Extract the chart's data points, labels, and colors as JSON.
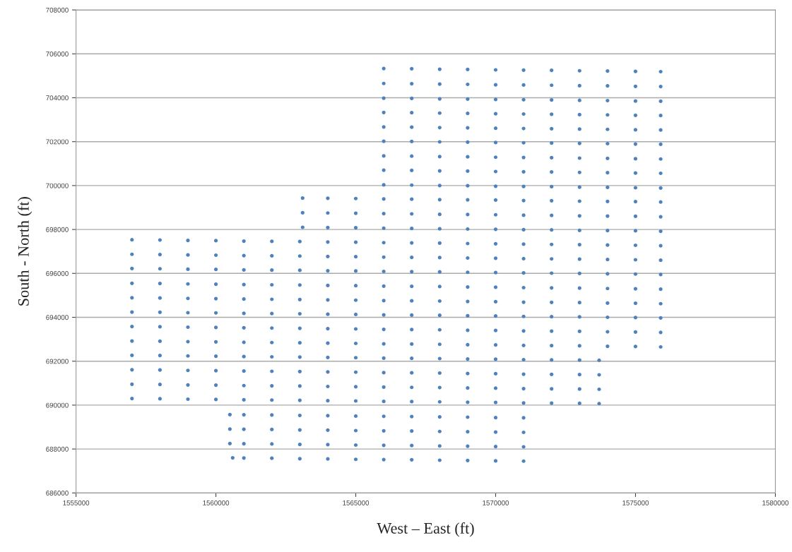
{
  "chart_data": {
    "type": "scatter",
    "xlabel": "West – East (ft)",
    "ylabel": "South - North (ft)",
    "xlim": [
      1555000,
      1580000
    ],
    "xticks": [
      1555000,
      1560000,
      1565000,
      1570000,
      1575000,
      1580000
    ],
    "ylim": [
      686000,
      708000
    ],
    "yticks": [
      686000,
      688000,
      690000,
      692000,
      694000,
      696000,
      698000,
      700000,
      702000,
      704000,
      706000,
      708000
    ],
    "grid": "y",
    "marker": "circle",
    "series": [
      {
        "color": "#4f81bd",
        "x": [
          1566000,
          1567000,
          1568000,
          1569000,
          1570000,
          1571000,
          1572000,
          1573000,
          1574000,
          1575000,
          1575900
        ],
        "values": [
          705330,
          705320,
          705300,
          705290,
          705270,
          705260,
          705250,
          705230,
          705220,
          705200,
          705190
        ]
      },
      {
        "color": "#4f81bd",
        "x": [
          1566000,
          1567000,
          1568000,
          1569000,
          1570000,
          1571000,
          1572000,
          1573000,
          1574000,
          1575000,
          1575900
        ],
        "values": [
          704650,
          704640,
          704620,
          704610,
          704590,
          704580,
          704570,
          704550,
          704540,
          704520,
          704510
        ]
      },
      {
        "color": "#4f81bd",
        "x": [
          1566000,
          1567000,
          1568000,
          1569000,
          1570000,
          1571000,
          1572000,
          1573000,
          1574000,
          1575000,
          1575900
        ],
        "values": [
          703980,
          703970,
          703950,
          703940,
          703920,
          703910,
          703900,
          703880,
          703870,
          703850,
          703840
        ]
      },
      {
        "color": "#4f81bd",
        "x": [
          1566000,
          1567000,
          1568000,
          1569000,
          1570000,
          1571000,
          1572000,
          1573000,
          1574000,
          1575000,
          1575900
        ],
        "values": [
          703330,
          703320,
          703300,
          703290,
          703270,
          703260,
          703250,
          703230,
          703220,
          703200,
          703190
        ]
      },
      {
        "color": "#4f81bd",
        "x": [
          1566000,
          1567000,
          1568000,
          1569000,
          1570000,
          1571000,
          1572000,
          1573000,
          1574000,
          1575000,
          1575900
        ],
        "values": [
          702670,
          702660,
          702640,
          702630,
          702610,
          702600,
          702590,
          702570,
          702560,
          702540,
          702530
        ]
      },
      {
        "color": "#4f81bd",
        "x": [
          1566000,
          1567000,
          1568000,
          1569000,
          1570000,
          1571000,
          1572000,
          1573000,
          1574000,
          1575000,
          1575900
        ],
        "values": [
          702020,
          702010,
          701990,
          701980,
          701960,
          701950,
          701940,
          701920,
          701910,
          701890,
          701880
        ]
      },
      {
        "color": "#4f81bd",
        "x": [
          1566000,
          1567000,
          1568000,
          1569000,
          1570000,
          1571000,
          1572000,
          1573000,
          1574000,
          1575000,
          1575900
        ],
        "values": [
          701350,
          701340,
          701320,
          701310,
          701290,
          701280,
          701270,
          701250,
          701240,
          701220,
          701210
        ]
      },
      {
        "color": "#4f81bd",
        "x": [
          1566000,
          1567000,
          1568000,
          1569000,
          1570000,
          1571000,
          1572000,
          1573000,
          1574000,
          1575000,
          1575900
        ],
        "values": [
          700700,
          700690,
          700670,
          700660,
          700640,
          700630,
          700620,
          700600,
          700590,
          700570,
          700560
        ]
      },
      {
        "color": "#4f81bd",
        "x": [
          1566000,
          1567000,
          1568000,
          1569000,
          1570000,
          1571000,
          1572000,
          1573000,
          1574000,
          1575000,
          1575900
        ],
        "values": [
          700030,
          700020,
          700000,
          699990,
          699970,
          699960,
          699950,
          699930,
          699920,
          699900,
          699890
        ]
      },
      {
        "color": "#4f81bd",
        "x": [
          1563100,
          1564000,
          1565000,
          1566000,
          1567000,
          1568000,
          1569000,
          1570000,
          1571000,
          1572000,
          1573000,
          1574000,
          1575000,
          1575900
        ],
        "values": [
          699430,
          699420,
          699410,
          699390,
          699380,
          699360,
          699350,
          699340,
          699320,
          699310,
          699290,
          699280,
          699270,
          699250
        ]
      },
      {
        "color": "#4f81bd",
        "x": [
          1563100,
          1564000,
          1565000,
          1566000,
          1567000,
          1568000,
          1569000,
          1570000,
          1571000,
          1572000,
          1573000,
          1574000,
          1575000,
          1575900
        ],
        "values": [
          698760,
          698750,
          698740,
          698720,
          698710,
          698690,
          698680,
          698670,
          698650,
          698640,
          698620,
          698610,
          698600,
          698580
        ]
      },
      {
        "color": "#4f81bd",
        "x": [
          1563100,
          1564000,
          1565000,
          1566000,
          1567000,
          1568000,
          1569000,
          1570000,
          1571000,
          1572000,
          1573000,
          1574000,
          1575000,
          1575900
        ],
        "values": [
          698100,
          698090,
          698080,
          698060,
          698050,
          698030,
          698020,
          698010,
          697990,
          697980,
          697960,
          697950,
          697940,
          697920
        ]
      },
      {
        "color": "#4f81bd",
        "x": [
          1557000,
          1558000,
          1559000,
          1560000,
          1561000,
          1562000,
          1563000,
          1564000,
          1565000,
          1566000,
          1567000,
          1568000,
          1569000,
          1570000,
          1571000,
          1572000,
          1573000,
          1574000,
          1575000,
          1575900
        ],
        "values": [
          697530,
          697520,
          697500,
          697490,
          697470,
          697460,
          697450,
          697430,
          697420,
          697400,
          697390,
          697380,
          697360,
          697350,
          697330,
          697320,
          697310,
          697290,
          697280,
          697260
        ]
      },
      {
        "color": "#4f81bd",
        "x": [
          1557000,
          1558000,
          1559000,
          1560000,
          1561000,
          1562000,
          1563000,
          1564000,
          1565000,
          1566000,
          1567000,
          1568000,
          1569000,
          1570000,
          1571000,
          1572000,
          1573000,
          1574000,
          1575000,
          1575900
        ],
        "values": [
          696870,
          696860,
          696840,
          696830,
          696810,
          696800,
          696790,
          696770,
          696760,
          696740,
          696730,
          696720,
          696700,
          696690,
          696670,
          696660,
          696650,
          696630,
          696620,
          696600
        ]
      },
      {
        "color": "#4f81bd",
        "x": [
          1557000,
          1558000,
          1559000,
          1560000,
          1561000,
          1562000,
          1563000,
          1564000,
          1565000,
          1566000,
          1567000,
          1568000,
          1569000,
          1570000,
          1571000,
          1572000,
          1573000,
          1574000,
          1575000,
          1575900
        ],
        "values": [
          696220,
          696210,
          696190,
          696180,
          696160,
          696150,
          696140,
          696120,
          696110,
          696090,
          696080,
          696070,
          696050,
          696040,
          696020,
          696010,
          696000,
          695980,
          695970,
          695950
        ]
      },
      {
        "color": "#4f81bd",
        "x": [
          1557000,
          1558000,
          1559000,
          1560000,
          1561000,
          1562000,
          1563000,
          1564000,
          1565000,
          1566000,
          1567000,
          1568000,
          1569000,
          1570000,
          1571000,
          1572000,
          1573000,
          1574000,
          1575000,
          1575900
        ],
        "values": [
          695550,
          695540,
          695520,
          695510,
          695490,
          695480,
          695470,
          695450,
          695440,
          695420,
          695410,
          695400,
          695380,
          695370,
          695350,
          695340,
          695330,
          695310,
          695300,
          695280
        ]
      },
      {
        "color": "#4f81bd",
        "x": [
          1557000,
          1558000,
          1559000,
          1560000,
          1561000,
          1562000,
          1563000,
          1564000,
          1565000,
          1566000,
          1567000,
          1568000,
          1569000,
          1570000,
          1571000,
          1572000,
          1573000,
          1574000,
          1575000,
          1575900
        ],
        "values": [
          694890,
          694880,
          694860,
          694850,
          694830,
          694820,
          694810,
          694790,
          694780,
          694760,
          694750,
          694740,
          694720,
          694710,
          694690,
          694680,
          694670,
          694650,
          694640,
          694620
        ]
      },
      {
        "color": "#4f81bd",
        "x": [
          1557000,
          1558000,
          1559000,
          1560000,
          1561000,
          1562000,
          1563000,
          1564000,
          1565000,
          1566000,
          1567000,
          1568000,
          1569000,
          1570000,
          1571000,
          1572000,
          1573000,
          1574000,
          1575000,
          1575900
        ],
        "values": [
          694240,
          694230,
          694210,
          694200,
          694180,
          694170,
          694160,
          694140,
          694130,
          694110,
          694100,
          694090,
          694070,
          694060,
          694040,
          694030,
          694020,
          694000,
          693990,
          693970
        ]
      },
      {
        "color": "#4f81bd",
        "x": [
          1557000,
          1558000,
          1559000,
          1560000,
          1561000,
          1562000,
          1563000,
          1564000,
          1565000,
          1566000,
          1567000,
          1568000,
          1569000,
          1570000,
          1571000,
          1572000,
          1573000,
          1574000,
          1575000,
          1575900
        ],
        "values": [
          693580,
          693570,
          693550,
          693540,
          693520,
          693510,
          693500,
          693480,
          693470,
          693450,
          693440,
          693430,
          693410,
          693400,
          693380,
          693370,
          693360,
          693340,
          693330,
          693310
        ]
      },
      {
        "color": "#4f81bd",
        "x": [
          1557000,
          1558000,
          1559000,
          1560000,
          1561000,
          1562000,
          1563000,
          1564000,
          1565000,
          1566000,
          1567000,
          1568000,
          1569000,
          1570000,
          1571000,
          1572000,
          1573000,
          1574000,
          1575000,
          1575900
        ],
        "values": [
          692920,
          692910,
          692890,
          692880,
          692860,
          692850,
          692840,
          692820,
          692810,
          692790,
          692780,
          692770,
          692750,
          692740,
          692720,
          692710,
          692700,
          692680,
          692670,
          692650
        ]
      },
      {
        "color": "#4f81bd",
        "x": [
          1557000,
          1558000,
          1559000,
          1560000,
          1561000,
          1562000,
          1563000,
          1564000,
          1565000,
          1566000,
          1567000,
          1568000,
          1569000,
          1570000,
          1571000,
          1572000,
          1573000,
          1573700
        ],
        "values": [
          692270,
          692260,
          692240,
          692230,
          692210,
          692200,
          692190,
          692170,
          692160,
          692140,
          692130,
          692120,
          692100,
          692090,
          692070,
          692060,
          692050,
          692040
        ]
      },
      {
        "color": "#4f81bd",
        "x": [
          1557000,
          1558000,
          1559000,
          1560000,
          1561000,
          1562000,
          1563000,
          1564000,
          1565000,
          1566000,
          1567000,
          1568000,
          1569000,
          1570000,
          1571000,
          1572000,
          1573000,
          1573700
        ],
        "values": [
          691610,
          691600,
          691580,
          691570,
          691550,
          691540,
          691530,
          691510,
          691500,
          691480,
          691470,
          691460,
          691440,
          691430,
          691410,
          691400,
          691390,
          691380
        ]
      },
      {
        "color": "#4f81bd",
        "x": [
          1557000,
          1558000,
          1559000,
          1560000,
          1561000,
          1562000,
          1563000,
          1564000,
          1565000,
          1566000,
          1567000,
          1568000,
          1569000,
          1570000,
          1571000,
          1572000,
          1573000,
          1573700
        ],
        "values": [
          690950,
          690940,
          690920,
          690910,
          690890,
          690880,
          690870,
          690850,
          690840,
          690820,
          690810,
          690800,
          690780,
          690770,
          690750,
          690740,
          690730,
          690720
        ]
      },
      {
        "color": "#4f81bd",
        "x": [
          1557000,
          1558000,
          1559000,
          1560000,
          1561000,
          1562000,
          1563000,
          1564000,
          1565000,
          1566000,
          1567000,
          1568000,
          1569000,
          1570000,
          1571000,
          1572000,
          1573000,
          1573700
        ],
        "values": [
          690300,
          690290,
          690270,
          690260,
          690240,
          690230,
          690220,
          690200,
          690190,
          690170,
          690160,
          690150,
          690130,
          690120,
          690100,
          690090,
          690080,
          690070
        ]
      },
      {
        "color": "#4f81bd",
        "x": [
          1560500,
          1561000,
          1562000,
          1563000,
          1564000,
          1565000,
          1566000,
          1567000,
          1568000,
          1569000,
          1570000,
          1571000
        ],
        "values": [
          689570,
          689560,
          689550,
          689530,
          689520,
          689500,
          689490,
          689480,
          689460,
          689450,
          689430,
          689420
        ]
      },
      {
        "color": "#4f81bd",
        "x": [
          1560500,
          1561000,
          1562000,
          1563000,
          1564000,
          1565000,
          1566000,
          1567000,
          1568000,
          1569000,
          1570000,
          1571000
        ],
        "values": [
          688910,
          688900,
          688890,
          688870,
          688860,
          688840,
          688830,
          688820,
          688800,
          688790,
          688770,
          688760
        ]
      },
      {
        "color": "#4f81bd",
        "x": [
          1560500,
          1561000,
          1562000,
          1563000,
          1564000,
          1565000,
          1566000,
          1567000,
          1568000,
          1569000,
          1570000,
          1571000
        ],
        "values": [
          688250,
          688240,
          688230,
          688210,
          688200,
          688180,
          688170,
          688160,
          688140,
          688130,
          688110,
          688100
        ]
      },
      {
        "color": "#4f81bd",
        "x": [
          1560600,
          1561000,
          1562000,
          1563000,
          1564000,
          1565000,
          1566000,
          1567000,
          1568000,
          1569000,
          1570000,
          1571000
        ],
        "values": [
          687600,
          687590,
          687580,
          687560,
          687550,
          687530,
          687520,
          687510,
          687490,
          687480,
          687460,
          687450
        ]
      }
    ]
  }
}
